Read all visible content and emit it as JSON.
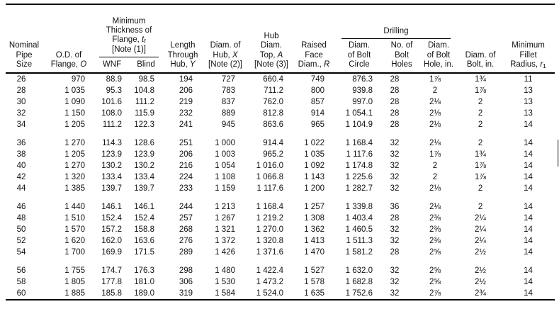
{
  "header": {
    "nominal_pipe_size": "Nominal\nPipe\nSize",
    "od_prefix": "O.D. of\nFlange, ",
    "od_var": "O",
    "thickness_prefix": "Minimum\nThickness of\nFlange, ",
    "thickness_var": "t",
    "thickness_sub": "f",
    "thickness_suffix": "\n[Note (1)]",
    "wnf": "WNF",
    "blind": "Blind",
    "length_prefix": "Length\nThrough\nHub, ",
    "length_var": "Y",
    "hub_x_prefix": "Diam. of\nHub, ",
    "hub_x_var": "X",
    "hub_x_suffix": "\n[Note (2)]",
    "hub_a_prefix": "Hub\nDiam.\nTop, ",
    "hub_a_var": "A",
    "hub_a_suffix": "\n[Note (3)]",
    "raised_prefix": "Raised\nFace\nDiam., ",
    "raised_var": "R",
    "drilling": "Drilling",
    "bolt_circle": "Diam.\nof Bolt\nCircle",
    "bolt_holes": "No. of\nBolt\nHoles",
    "bolt_hole_d": "Diam.\nof Bolt\nHole, in.",
    "bolt_diam": "Diam. of\nBolt, in.",
    "fillet_prefix": "Minimum\nFillet\nRadius, ",
    "fillet_var": "r",
    "fillet_sub": "1"
  },
  "table": {
    "row_fields": [
      "size",
      "od",
      "wnf",
      "blind",
      "length_y",
      "hub_x",
      "hub_a",
      "raised_r",
      "bolt_circle",
      "bolt_holes",
      "bolt_hole",
      "bolt",
      "fillet_r"
    ],
    "groups": [
      5,
      5,
      5,
      3
    ],
    "rows": [
      {
        "size": "26",
        "od": "970",
        "wnf": "88.9",
        "blind": "98.5",
        "length_y": "194",
        "hub_x": "727",
        "hub_a": "660.4",
        "raised_r": "749",
        "bolt_circle": "876.3",
        "bolt_holes": "28",
        "bolt_hole": "1⅞",
        "bolt": "1¾",
        "fillet_r": "11"
      },
      {
        "size": "28",
        "od": "1 035",
        "wnf": "95.3",
        "blind": "104.8",
        "length_y": "206",
        "hub_x": "783",
        "hub_a": "711.2",
        "raised_r": "800",
        "bolt_circle": "939.8",
        "bolt_holes": "28",
        "bolt_hole": "2",
        "bolt": "1⅞",
        "fillet_r": "13"
      },
      {
        "size": "30",
        "od": "1 090",
        "wnf": "101.6",
        "blind": "111.2",
        "length_y": "219",
        "hub_x": "837",
        "hub_a": "762.0",
        "raised_r": "857",
        "bolt_circle": "997.0",
        "bolt_holes": "28",
        "bolt_hole": "2⅛",
        "bolt": "2",
        "fillet_r": "13"
      },
      {
        "size": "32",
        "od": "1 150",
        "wnf": "108.0",
        "blind": "115.9",
        "length_y": "232",
        "hub_x": "889",
        "hub_a": "812.8",
        "raised_r": "914",
        "bolt_circle": "1 054.1",
        "bolt_holes": "28",
        "bolt_hole": "2⅛",
        "bolt": "2",
        "fillet_r": "13"
      },
      {
        "size": "34",
        "od": "1 205",
        "wnf": "111.2",
        "blind": "122.3",
        "length_y": "241",
        "hub_x": "945",
        "hub_a": "863.6",
        "raised_r": "965",
        "bolt_circle": "1 104.9",
        "bolt_holes": "28",
        "bolt_hole": "2⅛",
        "bolt": "2",
        "fillet_r": "14"
      },
      {
        "size": "36",
        "od": "1 270",
        "wnf": "114.3",
        "blind": "128.6",
        "length_y": "251",
        "hub_x": "1 000",
        "hub_a": "914.4",
        "raised_r": "1 022",
        "bolt_circle": "1 168.4",
        "bolt_holes": "32",
        "bolt_hole": "2⅛",
        "bolt": "2",
        "fillet_r": "14"
      },
      {
        "size": "38",
        "od": "1 205",
        "wnf": "123.9",
        "blind": "123.9",
        "length_y": "206",
        "hub_x": "1 003",
        "hub_a": "965.2",
        "raised_r": "1 035",
        "bolt_circle": "1 117.6",
        "bolt_holes": "32",
        "bolt_hole": "1⅞",
        "bolt": "1¾",
        "fillet_r": "14"
      },
      {
        "size": "40",
        "od": "1 270",
        "wnf": "130.2",
        "blind": "130.2",
        "length_y": "216",
        "hub_x": "1 054",
        "hub_a": "1 016.0",
        "raised_r": "1 092",
        "bolt_circle": "1 174.8",
        "bolt_holes": "32",
        "bolt_hole": "2",
        "bolt": "1⅞",
        "fillet_r": "14"
      },
      {
        "size": "42",
        "od": "1 320",
        "wnf": "133.4",
        "blind": "133.4",
        "length_y": "224",
        "hub_x": "1 108",
        "hub_a": "1 066.8",
        "raised_r": "1 143",
        "bolt_circle": "1 225.6",
        "bolt_holes": "32",
        "bolt_hole": "2",
        "bolt": "1⅞",
        "fillet_r": "14"
      },
      {
        "size": "44",
        "od": "1 385",
        "wnf": "139.7",
        "blind": "139.7",
        "length_y": "233",
        "hub_x": "1 159",
        "hub_a": "1 117.6",
        "raised_r": "1 200",
        "bolt_circle": "1 282.7",
        "bolt_holes": "32",
        "bolt_hole": "2⅛",
        "bolt": "2",
        "fillet_r": "14"
      },
      {
        "size": "46",
        "od": "1 440",
        "wnf": "146.1",
        "blind": "146.1",
        "length_y": "244",
        "hub_x": "1 213",
        "hub_a": "1 168.4",
        "raised_r": "1 257",
        "bolt_circle": "1 339.8",
        "bolt_holes": "36",
        "bolt_hole": "2⅛",
        "bolt": "2",
        "fillet_r": "14"
      },
      {
        "size": "48",
        "od": "1 510",
        "wnf": "152.4",
        "blind": "152.4",
        "length_y": "257",
        "hub_x": "1 267",
        "hub_a": "1 219.2",
        "raised_r": "1 308",
        "bolt_circle": "1 403.4",
        "bolt_holes": "28",
        "bolt_hole": "2⅜",
        "bolt": "2¼",
        "fillet_r": "14"
      },
      {
        "size": "50",
        "od": "1 570",
        "wnf": "157.2",
        "blind": "158.8",
        "length_y": "268",
        "hub_x": "1 321",
        "hub_a": "1 270.0",
        "raised_r": "1 362",
        "bolt_circle": "1 460.5",
        "bolt_holes": "32",
        "bolt_hole": "2⅜",
        "bolt": "2¼",
        "fillet_r": "14"
      },
      {
        "size": "52",
        "od": "1 620",
        "wnf": "162.0",
        "blind": "163.6",
        "length_y": "276",
        "hub_x": "1 372",
        "hub_a": "1 320.8",
        "raised_r": "1 413",
        "bolt_circle": "1 511.3",
        "bolt_holes": "32",
        "bolt_hole": "2⅜",
        "bolt": "2¼",
        "fillet_r": "14"
      },
      {
        "size": "54",
        "od": "1 700",
        "wnf": "169.9",
        "blind": "171.5",
        "length_y": "289",
        "hub_x": "1 426",
        "hub_a": "1 371.6",
        "raised_r": "1 470",
        "bolt_circle": "1 581.2",
        "bolt_holes": "28",
        "bolt_hole": "2⅝",
        "bolt": "2½",
        "fillet_r": "14"
      },
      {
        "size": "56",
        "od": "1 755",
        "wnf": "174.7",
        "blind": "176.3",
        "length_y": "298",
        "hub_x": "1 480",
        "hub_a": "1 422.4",
        "raised_r": "1 527",
        "bolt_circle": "1 632.0",
        "bolt_holes": "32",
        "bolt_hole": "2⅝",
        "bolt": "2½",
        "fillet_r": "14"
      },
      {
        "size": "58",
        "od": "1 805",
        "wnf": "177.8",
        "blind": "181.0",
        "length_y": "306",
        "hub_x": "1 530",
        "hub_a": "1 473.2",
        "raised_r": "1 578",
        "bolt_circle": "1 682.8",
        "bolt_holes": "32",
        "bolt_hole": "2⅝",
        "bolt": "2½",
        "fillet_r": "14"
      },
      {
        "size": "60",
        "od": "1 885",
        "wnf": "185.8",
        "blind": "189.0",
        "length_y": "319",
        "hub_x": "1 584",
        "hub_a": "1 524.0",
        "raised_r": "1 635",
        "bolt_circle": "1 752.6",
        "bolt_holes": "32",
        "bolt_hole": "2⅞",
        "bolt": "2¾",
        "fillet_r": "14"
      }
    ]
  }
}
